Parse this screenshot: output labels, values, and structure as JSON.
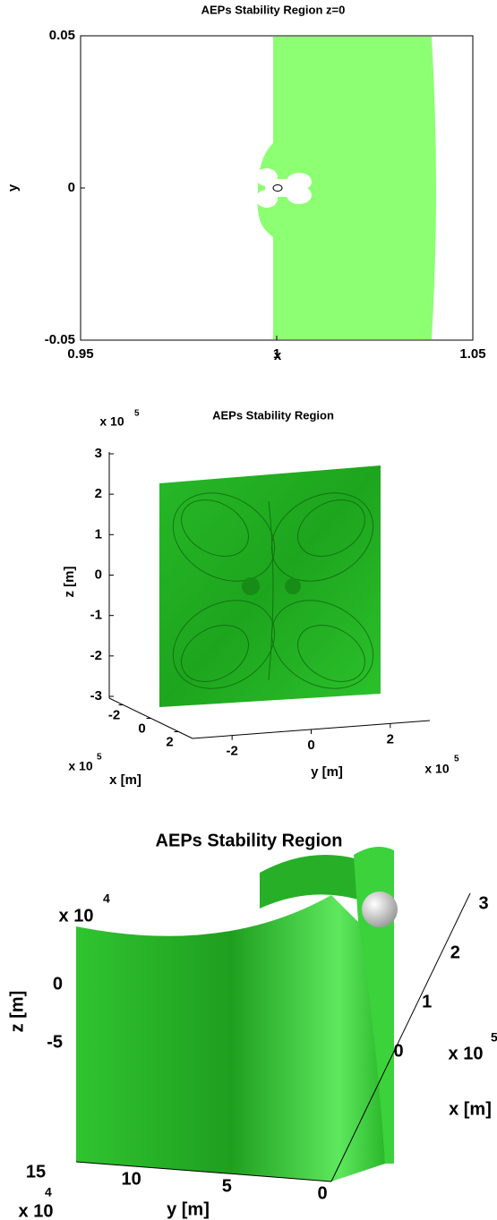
{
  "chart_data": [
    {
      "type": "region",
      "title": "AEPs Stability Region z=0",
      "x_label": "x",
      "y_label": "y",
      "xlim": [
        0.95,
        1.05
      ],
      "ylim": [
        -0.05,
        0.05
      ],
      "xticks": [
        0.95,
        1,
        1.05
      ],
      "yticks": [
        -0.05,
        0,
        0.05
      ]
    },
    {
      "type": "surface3d",
      "title": "AEPs Stability Region",
      "x_label": "x [m]",
      "y_label": "y [m]",
      "z_label": "z [m]",
      "xlim": [
        -3,
        3
      ],
      "ylim": [
        -3,
        3
      ],
      "zlim": [
        -3,
        3
      ],
      "xticks": [
        -2,
        0,
        2
      ],
      "yticks": [
        -2,
        0,
        2
      ],
      "zticks": [
        -3,
        -2,
        -1,
        0,
        1,
        2,
        3
      ],
      "x_multiplier": "x 10",
      "x_exponent": 5,
      "y_multiplier": "x 10",
      "y_exponent": 5,
      "z_multiplier": "x 10",
      "z_exponent": 5
    },
    {
      "type": "surface3d",
      "title": "AEPs Stability Region",
      "x_label": "x [m]",
      "y_label": "y [m]",
      "z_label": "z [m]",
      "xlim": [
        0,
        3
      ],
      "ylim": [
        0,
        15
      ],
      "zlim": [
        -8,
        4
      ],
      "xticks": [
        0,
        1,
        2,
        3
      ],
      "yticks": [
        0,
        5,
        10,
        15
      ],
      "zticks": [
        -5,
        0
      ],
      "x_multiplier": "x 10",
      "x_exponent": 5,
      "y_multiplier": "x 10",
      "y_exponent": 4,
      "z_multiplier": "x 10",
      "z_exponent": 4
    }
  ]
}
